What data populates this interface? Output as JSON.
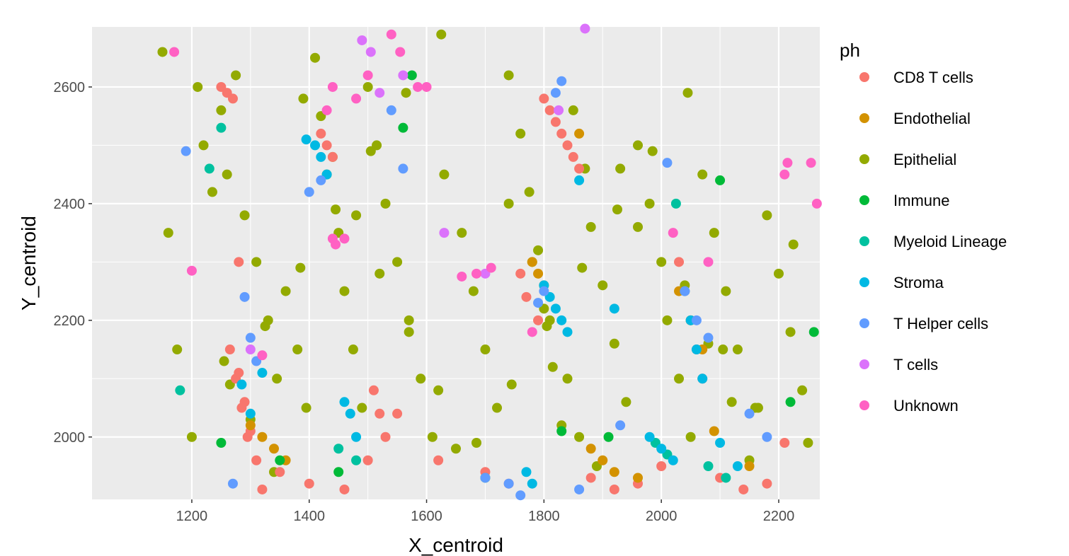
{
  "chart_data": {
    "type": "scatter",
    "title": "",
    "xlabel": "X_centroid",
    "ylabel": "Y_centroid",
    "xlim": [
      1030,
      2270
    ],
    "ylim": [
      1893,
      2703
    ],
    "x_ticks": [
      1200,
      1400,
      1600,
      1800,
      2000,
      2200
    ],
    "y_ticks": [
      2000,
      2200,
      2400,
      2600
    ],
    "grid": true,
    "background": "#ebebeb",
    "gridline_color": "#ffffff",
    "legend": {
      "title": "ph",
      "placement": "right",
      "entries": [
        {
          "label": "CD8 T cells",
          "color": "#F8766D"
        },
        {
          "label": "Endothelial",
          "color": "#D39200"
        },
        {
          "label": "Epithelial",
          "color": "#93AA00"
        },
        {
          "label": "Immune",
          "color": "#00BA38"
        },
        {
          "label": "Myeloid Lineage",
          "color": "#00C19F"
        },
        {
          "label": "Stroma",
          "color": "#00B9E3"
        },
        {
          "label": "T Helper cells",
          "color": "#619CFF"
        },
        {
          "label": "T cells",
          "color": "#DB72FB"
        },
        {
          "label": "Unknown",
          "color": "#FF61C3"
        }
      ]
    },
    "series": [
      {
        "name": "Epithelial",
        "color": "#93AA00",
        "x": [
          1150,
          1160,
          1175,
          1210,
          1220,
          1235,
          1250,
          1260,
          1275,
          1290,
          1310,
          1330,
          1345,
          1360,
          1380,
          1395,
          1410,
          1420,
          1430,
          1450,
          1460,
          1475,
          1490,
          1500,
          1515,
          1530,
          1550,
          1570,
          1590,
          1610,
          1630,
          1660,
          1680,
          1700,
          1720,
          1740,
          1760,
          1775,
          1790,
          1800,
          1815,
          1830,
          1850,
          1870,
          1880,
          1900,
          1920,
          1940,
          1960,
          1980,
          2000,
          2010,
          2030,
          2050,
          2070,
          2090,
          2110,
          2130,
          2160,
          2180,
          2200,
          2220,
          2240,
          2250,
          1255,
          1300,
          1340,
          1390,
          1440,
          1480,
          1520,
          1570,
          1620,
          1650,
          1740,
          1780,
          1810,
          1840,
          1860,
          1890,
          1930,
          1960,
          2040,
          2080,
          2120,
          2150,
          1200,
          1265,
          1325,
          1385,
          1445,
          1505,
          1565,
          1625,
          1685,
          1745,
          1805,
          1865,
          1925,
          1985,
          2045,
          2105,
          2165,
          2225
        ],
        "y": [
          2660,
          2350,
          2150,
          2600,
          2500,
          2420,
          2560,
          2450,
          2620,
          2380,
          2300,
          2200,
          2100,
          2250,
          2150,
          2050,
          2650,
          2550,
          2450,
          2350,
          2250,
          2150,
          2050,
          2600,
          2500,
          2400,
          2300,
          2200,
          2100,
          2000,
          2450,
          2350,
          2250,
          2150,
          2050,
          2620,
          2520,
          2420,
          2320,
          2220,
          2120,
          2020,
          2560,
          2460,
          2360,
          2260,
          2160,
          2060,
          2500,
          2400,
          2300,
          2200,
          2100,
          2000,
          2450,
          2350,
          2250,
          2150,
          2050,
          2380,
          2280,
          2180,
          2080,
          1990,
          2130,
          2030,
          1940,
          2580,
          2480,
          2380,
          2280,
          2180,
          2080,
          1980,
          2400,
          2300,
          2200,
          2100,
          2000,
          1950,
          2460,
          2360,
          2260,
          2160,
          2060,
          1960,
          2000,
          2090,
          2190,
          2290,
          2390,
          2490,
          2590,
          2690,
          1990,
          2090,
          2190,
          2290,
          2390,
          2490,
          2590,
          2150,
          2050,
          2330
        ]
      },
      {
        "name": "CD8 T cells",
        "color": "#F8766D",
        "x": [
          1250,
          1260,
          1270,
          1280,
          1290,
          1300,
          1310,
          1320,
          1265,
          1275,
          1285,
          1295,
          1420,
          1430,
          1440,
          1510,
          1520,
          1530,
          1800,
          1810,
          1820,
          1830,
          1840,
          1850,
          1860,
          2030,
          2040,
          2050,
          2060,
          2070,
          1760,
          1770,
          1790,
          1620,
          1700,
          1740,
          2100,
          2140,
          2180,
          2210,
          1280,
          1350,
          1400,
          1460,
          1500,
          1550,
          1880,
          1920,
          1960,
          2000
        ],
        "y": [
          2600,
          2590,
          2580,
          2110,
          2060,
          2010,
          1960,
          1910,
          2150,
          2100,
          2050,
          2000,
          2520,
          2500,
          2480,
          2080,
          2040,
          2000,
          2580,
          2560,
          2540,
          2520,
          2500,
          2480,
          2460,
          2300,
          2250,
          2200,
          2150,
          2100,
          2280,
          2240,
          2200,
          1960,
          1940,
          1920,
          1930,
          1910,
          1920,
          1990,
          2300,
          1940,
          1920,
          1910,
          1960,
          2040,
          1930,
          1910,
          1920,
          1950
        ]
      },
      {
        "name": "Endothelial",
        "color": "#D39200",
        "x": [
          1300,
          1320,
          1340,
          1360,
          1780,
          1790,
          1800,
          2030,
          2050,
          2070,
          1860,
          1880,
          1900,
          1920,
          1960,
          2090,
          2150
        ],
        "y": [
          2020,
          2000,
          1980,
          1960,
          2300,
          2280,
          2260,
          2250,
          2200,
          2150,
          2520,
          1980,
          1960,
          1940,
          1930,
          2010,
          1950
        ]
      },
      {
        "name": "Immune",
        "color": "#00BA38",
        "x": [
          1575,
          2100,
          1910,
          1250,
          1350,
          2220,
          2260,
          1830,
          1450,
          1700,
          1560
        ],
        "y": [
          2620,
          2440,
          2000,
          1990,
          1960,
          2060,
          2180,
          2010,
          1940,
          1930,
          2530
        ]
      },
      {
        "name": "Myeloid Lineage",
        "color": "#00C19F",
        "x": [
          1250,
          1230,
          2025,
          1180,
          1450,
          1480,
          1990,
          2010,
          2080,
          2110
        ],
        "y": [
          2530,
          2460,
          2400,
          2080,
          1980,
          1960,
          1990,
          1970,
          1950,
          1930
        ]
      },
      {
        "name": "Stroma",
        "color": "#00B9E3",
        "x": [
          1395,
          1410,
          1420,
          1430,
          1800,
          1810,
          1820,
          1830,
          1840,
          1285,
          1300,
          1320,
          1460,
          1470,
          1480,
          2040,
          2050,
          2060,
          2070,
          1770,
          1780,
          1860,
          1980,
          2000,
          2020,
          2100,
          2130,
          1920
        ],
        "y": [
          2510,
          2500,
          2480,
          2450,
          2260,
          2240,
          2220,
          2200,
          2180,
          2090,
          2040,
          2110,
          2060,
          2040,
          2000,
          2250,
          2200,
          2150,
          2100,
          1940,
          1920,
          2440,
          2000,
          1980,
          1960,
          1990,
          1950,
          2220
        ]
      },
      {
        "name": "T Helper cells",
        "color": "#619CFF",
        "x": [
          1190,
          1400,
          1420,
          1560,
          1540,
          1290,
          1300,
          1310,
          1830,
          1820,
          1800,
          1790,
          2010,
          2040,
          2060,
          2080,
          1740,
          1760,
          1700,
          1860,
          1930,
          2150,
          2180,
          1270
        ],
        "y": [
          2490,
          2420,
          2440,
          2460,
          2560,
          2240,
          2170,
          2130,
          2610,
          2590,
          2250,
          2230,
          2470,
          2250,
          2200,
          2170,
          1920,
          1900,
          1930,
          1910,
          2020,
          2040,
          2000,
          1920
        ]
      },
      {
        "name": "T cells",
        "color": "#DB72FB",
        "x": [
          1490,
          1505,
          1560,
          1870,
          1630,
          1700,
          1825,
          1520,
          1300
        ],
        "y": [
          2680,
          2660,
          2620,
          2700,
          2350,
          2280,
          2560,
          2590,
          2150
        ]
      },
      {
        "name": "Unknown",
        "color": "#FF61C3",
        "x": [
          1170,
          1200,
          1430,
          1440,
          1480,
          1540,
          1555,
          1585,
          1600,
          1660,
          1685,
          1710,
          2210,
          2215,
          2255,
          2265,
          1440,
          1445,
          1460,
          1500,
          1320,
          1780,
          2080,
          2020
        ],
        "y": [
          2660,
          2285,
          2560,
          2340,
          2580,
          2690,
          2660,
          2600,
          2600,
          2275,
          2280,
          2290,
          2450,
          2470,
          2470,
          2400,
          2600,
          2330,
          2340,
          2620,
          2140,
          2180,
          2300,
          2350
        ]
      }
    ]
  }
}
